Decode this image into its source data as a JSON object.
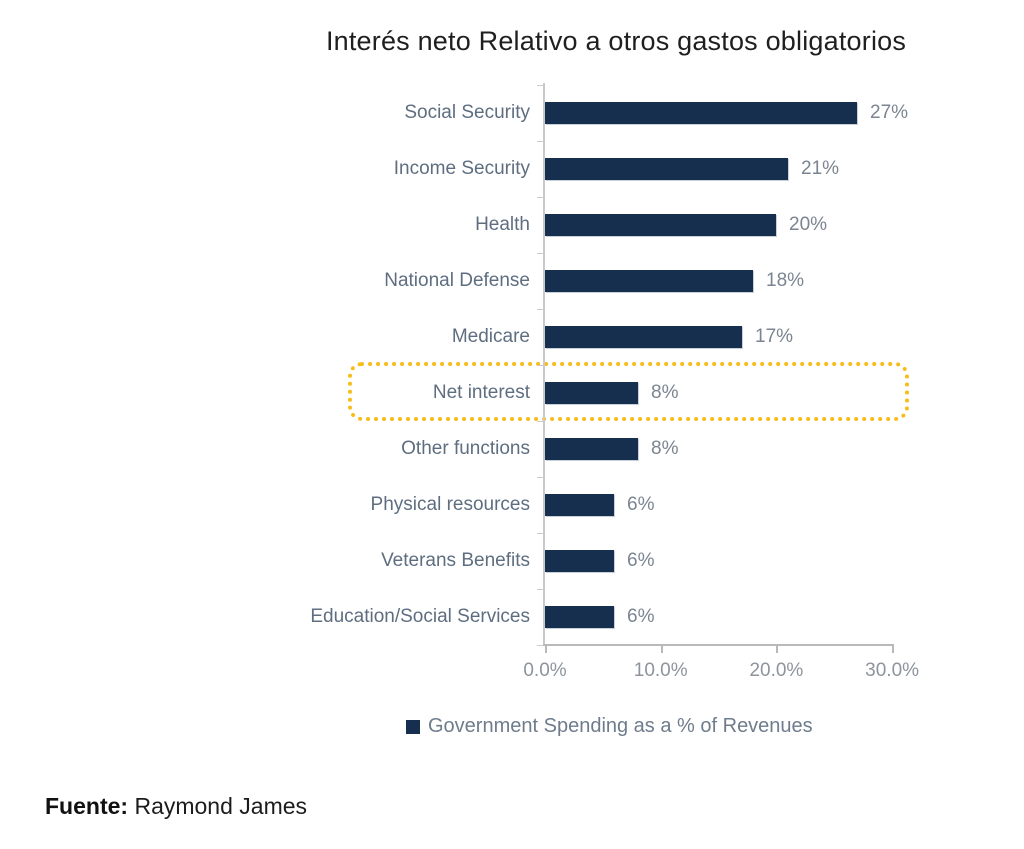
{
  "title": "Interés neto Relativo a otros gastos obligatorios",
  "legend": {
    "marker_color": "#172f4f",
    "label": "Government Spending as a % of Revenues"
  },
  "source": {
    "label": "Fuente:",
    "text": " Raymond James"
  },
  "chart_data": {
    "type": "bar",
    "orientation": "horizontal",
    "title": "Interés neto Relativo a otros gastos obligatorios",
    "categories": [
      "Social Security",
      "Income Security",
      "Health",
      "National Defense",
      "Medicare",
      "Net interest",
      "Other functions",
      "Physical resources",
      "Veterans Benefits",
      "Education/Social Services"
    ],
    "values": [
      27,
      21,
      20,
      18,
      17,
      8,
      8,
      6,
      6,
      6
    ],
    "value_labels": [
      "27%",
      "21%",
      "20%",
      "18%",
      "17%",
      "8%",
      "8%",
      "6%",
      "6%",
      "6%"
    ],
    "x_tick_values": [
      0,
      10,
      20,
      30
    ],
    "x_tick_labels": [
      "0.0%",
      "10.0%",
      "20.0%",
      "30.0%"
    ],
    "xlim": [
      0,
      30
    ],
    "grid": false,
    "bar_color": "#172f4f",
    "label_color": "#5e6e80",
    "value_color": "#7b8591",
    "legend": [
      "Government Spending as a % of Revenues"
    ],
    "legend_position": "bottom",
    "highlight": {
      "category": "Net interest",
      "style": "dotted-rounded-rect",
      "border_color": "#f8bc16"
    }
  }
}
